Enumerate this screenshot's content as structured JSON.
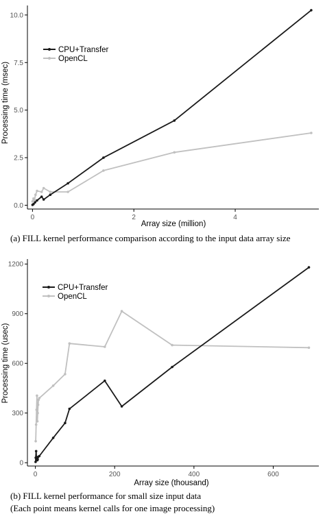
{
  "chart_data": [
    {
      "type": "line",
      "xlabel": "Array size (million)",
      "ylabel": "Processing time (msec)",
      "xlim": [
        -0.1,
        5.65
      ],
      "ylim": [
        -0.2,
        10.5
      ],
      "xticks": [
        0,
        2,
        4
      ],
      "yticks": [
        0.0,
        2.5,
        5.0,
        7.5,
        10.0
      ],
      "xtick_labels": [
        "0",
        "2",
        "4"
      ],
      "ytick_labels": [
        "0.0",
        "2.5",
        "5.0",
        "7.5",
        "10.0"
      ],
      "grid": false,
      "legend_position": "top-left",
      "caption": "(a)  FILL kernel performance comparison according to the input data array size",
      "series": [
        {
          "name": "CPU+Transfer",
          "color": "#1a1a1a",
          "points": [
            [
              0.0,
              0.02
            ],
            [
              0.02,
              0.06
            ],
            [
              0.05,
              0.15
            ],
            [
              0.09,
              0.25
            ],
            [
              0.18,
              0.45
            ],
            [
              0.22,
              0.3
            ],
            [
              0.35,
              0.55
            ],
            [
              0.7,
              1.15
            ],
            [
              1.4,
              2.5
            ],
            [
              2.8,
              4.45
            ],
            [
              5.5,
              10.25
            ]
          ]
        },
        {
          "name": "OpenCL",
          "color": "#c0c0c0",
          "points": [
            [
              0.0,
              0.2
            ],
            [
              0.02,
              0.35
            ],
            [
              0.04,
              0.28
            ],
            [
              0.06,
              0.55
            ],
            [
              0.09,
              0.75
            ],
            [
              0.18,
              0.7
            ],
            [
              0.22,
              0.9
            ],
            [
              0.35,
              0.7
            ],
            [
              0.7,
              0.7
            ],
            [
              1.4,
              1.82
            ],
            [
              2.8,
              2.78
            ],
            [
              5.5,
              3.8
            ]
          ]
        }
      ]
    },
    {
      "type": "line",
      "xlabel": "Array size (thousand)",
      "ylabel": "Processing time (usec)",
      "xlim": [
        -20,
        715
      ],
      "ylim": [
        -20,
        1230
      ],
      "xticks": [
        0,
        200,
        400,
        600
      ],
      "yticks": [
        0,
        300,
        600,
        900,
        1200
      ],
      "xtick_labels": [
        "0",
        "200",
        "400",
        "600"
      ],
      "ytick_labels": [
        "0",
        "300",
        "600",
        "900",
        "1200"
      ],
      "grid": false,
      "legend_position": "top-left",
      "caption_lines": [
        "(b)  FILL kernel performance for small size input data",
        "(Each point means kernel calls for one image processing)"
      ],
      "series": [
        {
          "name": "CPU+Transfer",
          "color": "#1a1a1a",
          "points": [
            [
              0.5,
              5
            ],
            [
              1,
              30
            ],
            [
              2,
              70
            ],
            [
              3,
              15
            ],
            [
              4,
              25
            ],
            [
              5,
              15
            ],
            [
              6,
              20
            ],
            [
              7,
              35
            ],
            [
              10,
              40
            ],
            [
              45,
              150
            ],
            [
              75,
              240
            ],
            [
              86,
              325
            ],
            [
              175,
              495
            ],
            [
              218,
              340
            ],
            [
              345,
              578
            ],
            [
              690,
              1180
            ]
          ]
        },
        {
          "name": "OpenCL",
          "color": "#c0c0c0",
          "points": [
            [
              1,
              130
            ],
            [
              2,
              230
            ],
            [
              3,
              320
            ],
            [
              4,
              405
            ],
            [
              5,
              250
            ],
            [
              6,
              300
            ],
            [
              7,
              350
            ],
            [
              8,
              380
            ],
            [
              10,
              390
            ],
            [
              45,
              465
            ],
            [
              75,
              535
            ],
            [
              86,
              720
            ],
            [
              175,
              700
            ],
            [
              218,
              915
            ],
            [
              345,
              710
            ],
            [
              690,
              695
            ]
          ]
        }
      ]
    }
  ]
}
